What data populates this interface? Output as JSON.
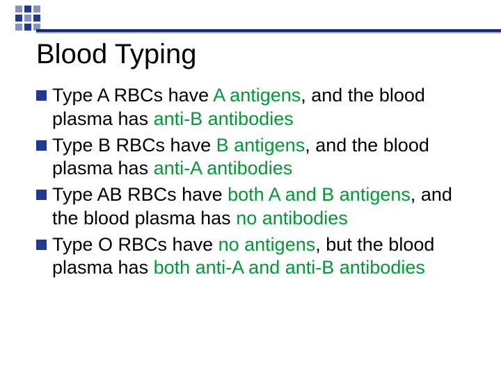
{
  "colors": {
    "accent_blue": "#1f3a93",
    "line_dark": "#162b6f",
    "line_light": "#9aa7c7",
    "text": "#000000",
    "highlight_green": "#009933",
    "background": "#ffffff"
  },
  "typography": {
    "title_fontsize": 40,
    "body_fontsize": 27,
    "font_family": "Arial"
  },
  "title": "Blood Typing",
  "bullets": [
    {
      "segments": [
        {
          "text": "Type A ",
          "green": false
        },
        {
          "text": "RBCs have ",
          "green": false
        },
        {
          "text": "A antigens",
          "green": true
        },
        {
          "text": ", and the blood plasma has ",
          "green": false
        },
        {
          "text": "anti-B antibodies",
          "green": true
        }
      ]
    },
    {
      "segments": [
        {
          "text": "Type B ",
          "green": false
        },
        {
          "text": "RBCs have ",
          "green": false
        },
        {
          "text": "B antigens",
          "green": true
        },
        {
          "text": ", and the blood plasma has ",
          "green": false
        },
        {
          "text": "anti-A antibodies",
          "green": true
        }
      ]
    },
    {
      "segments": [
        {
          "text": "Type AB ",
          "green": false
        },
        {
          "text": "RBCs have ",
          "green": false
        },
        {
          "text": "both A and B antigens",
          "green": true
        },
        {
          "text": ", and the blood plasma has ",
          "green": false
        },
        {
          "text": "no antibodies",
          "green": true
        }
      ]
    },
    {
      "segments": [
        {
          "text": "Type O ",
          "green": false
        },
        {
          "text": "RBCs have ",
          "green": false
        },
        {
          "text": "no antigens",
          "green": true
        },
        {
          "text": ", but the blood plasma has ",
          "green": false
        },
        {
          "text": "both anti-A and anti-B antibodies",
          "green": true
        }
      ]
    }
  ]
}
